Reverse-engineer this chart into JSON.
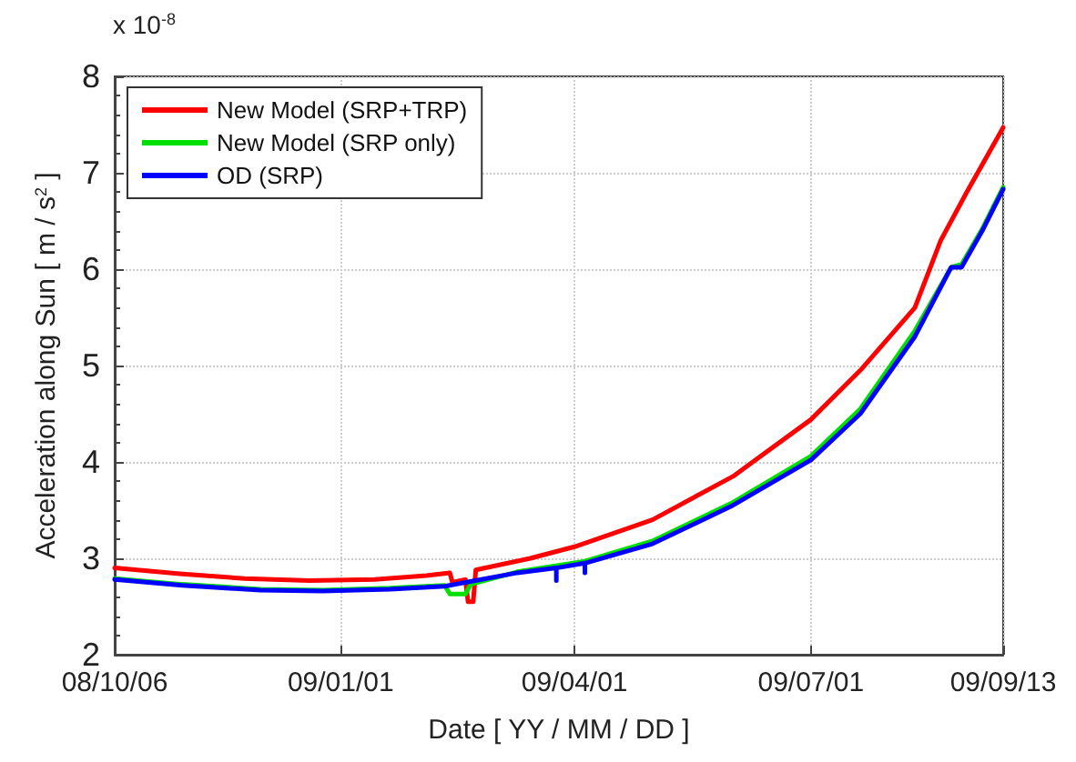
{
  "chart_data": {
    "type": "line",
    "xlabel": "Date [ YY / MM / DD ]",
    "ylabel": "Acceleration along Sun [ m / s$^{2}$ ]",
    "annotations": [
      "x 10$^{-8}$"
    ],
    "xlim": [
      "2008-10-06",
      "2009-09-13"
    ],
    "xticks": [
      {
        "value": "2008-10-06",
        "label": "08/10/06"
      },
      {
        "value": "2009-01-01",
        "label": "09/01/01"
      },
      {
        "value": "2009-04-01",
        "label": "09/04/01"
      },
      {
        "value": "2009-07-01",
        "label": "09/07/01"
      },
      {
        "value": "2009-09-13",
        "label": "09/09/13"
      }
    ],
    "ylim": [
      2,
      8
    ],
    "yticks": [
      2,
      3,
      4,
      5,
      6,
      7,
      8
    ],
    "grid": true,
    "legend": "top left",
    "marker": "none",
    "line_style": "solid",
    "series": [
      {
        "name": "New Model (SRP+TRP)",
        "color": "#ff0000",
        "x": [
          "2008-10-06",
          "2008-10-31",
          "2008-11-25",
          "2008-12-20",
          "2009-01-14",
          "2009-02-03",
          "2009-02-12",
          "2009-02-13",
          "2009-02-18",
          "2009-02-19",
          "2009-02-21",
          "2009-02-22",
          "2009-03-15",
          "2009-04-01",
          "2009-05-01",
          "2009-06-01",
          "2009-07-01",
          "2009-07-20",
          "2009-08-10",
          "2009-08-20",
          "2009-08-30",
          "2009-09-13"
        ],
        "values": [
          2.9,
          2.84,
          2.79,
          2.77,
          2.78,
          2.82,
          2.85,
          2.75,
          2.78,
          2.55,
          2.55,
          2.88,
          3.0,
          3.12,
          3.4,
          3.85,
          4.44,
          4.95,
          5.6,
          6.3,
          6.8,
          7.47
        ]
      },
      {
        "name": "New Model (SRP only)",
        "color": "#00e000",
        "x": [
          "2008-10-06",
          "2008-11-01",
          "2008-12-01",
          "2008-12-25",
          "2009-01-20",
          "2009-02-10",
          "2009-02-12",
          "2009-02-18",
          "2009-02-20",
          "2009-03-10",
          "2009-04-05",
          "2009-05-01",
          "2009-06-01",
          "2009-07-01",
          "2009-07-20",
          "2009-08-10",
          "2009-08-24",
          "2009-08-28",
          "2009-09-05",
          "2009-09-13"
        ],
        "values": [
          2.79,
          2.73,
          2.68,
          2.67,
          2.69,
          2.72,
          2.63,
          2.63,
          2.73,
          2.86,
          2.97,
          3.18,
          3.58,
          4.06,
          4.55,
          5.36,
          6.02,
          6.05,
          6.42,
          6.85
        ]
      },
      {
        "name": "OD (SRP)",
        "color": "#0000ff",
        "x": [
          "2008-10-06",
          "2008-11-01",
          "2008-12-01",
          "2008-12-25",
          "2009-01-20",
          "2009-02-10",
          "2009-03-10",
          "2009-03-25",
          "2009-03-25",
          "2009-03-25",
          "2009-04-05",
          "2009-04-05",
          "2009-04-05",
          "2009-05-01",
          "2009-06-01",
          "2009-07-01",
          "2009-07-20",
          "2009-08-10",
          "2009-08-24",
          "2009-08-28",
          "2009-09-05",
          "2009-09-13"
        ],
        "values": [
          2.78,
          2.72,
          2.67,
          2.66,
          2.68,
          2.71,
          2.85,
          2.9,
          2.77,
          2.9,
          2.95,
          2.85,
          2.95,
          3.15,
          3.55,
          4.02,
          4.5,
          5.3,
          6.02,
          6.02,
          6.4,
          6.83
        ]
      }
    ]
  }
}
